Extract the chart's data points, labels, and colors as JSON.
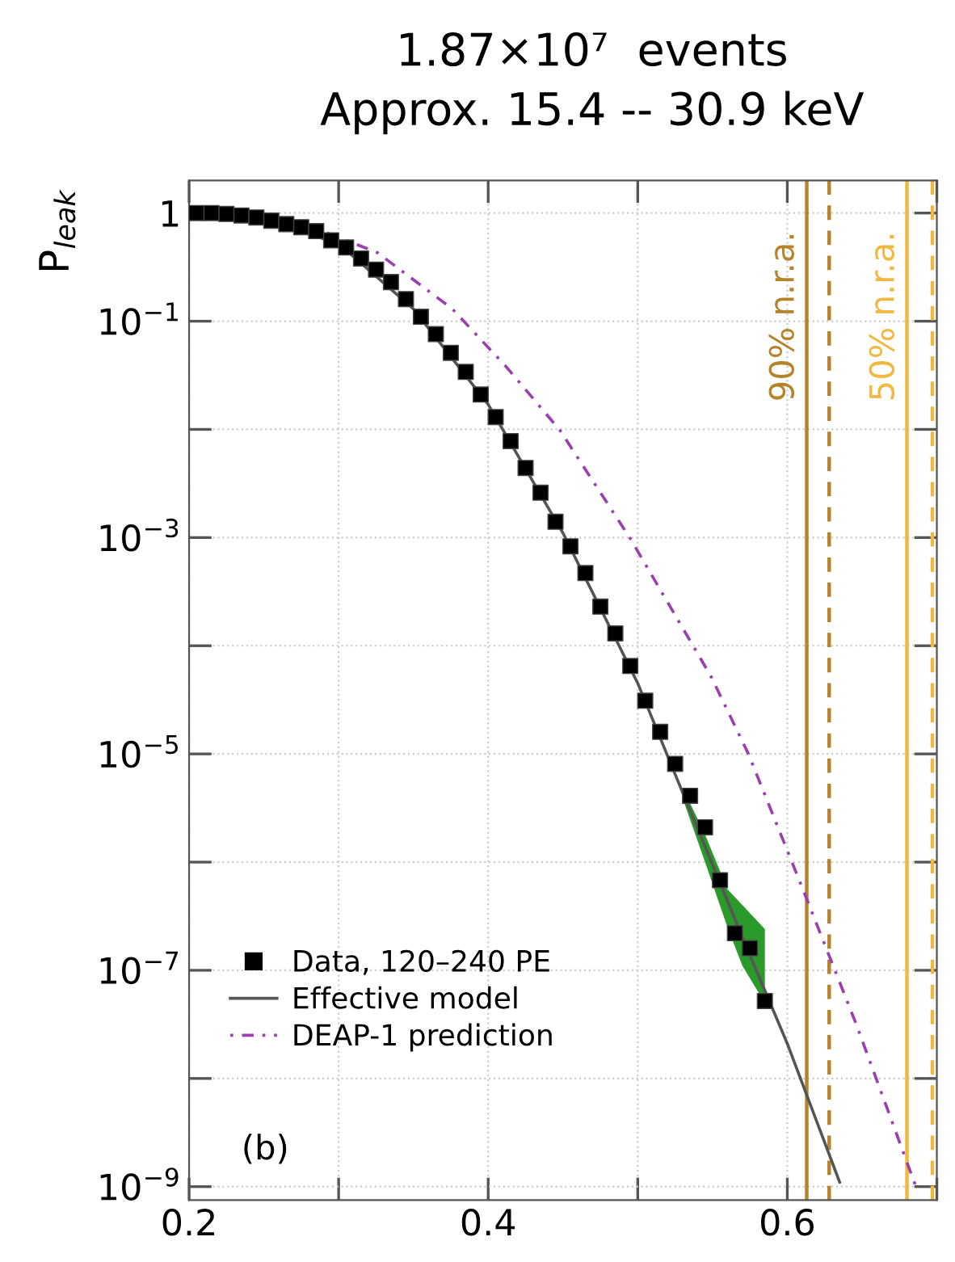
{
  "chart_data": {
    "type": "line",
    "title": "1.87×10⁷  events",
    "subtitle": "Approx. 15.4 -- 30.9 keV",
    "ylabel": "P$_{leak}$",
    "log": "y",
    "grid": true,
    "legend": "bottom left",
    "xlim": [
      0.2,
      0.7
    ],
    "xticks": [
      0.2,
      {
        "value": 0.3,
        "label": null
      },
      0.4,
      {
        "value": 0.5,
        "label": null
      },
      0.6,
      {
        "value": 0.7,
        "label": null
      }
    ],
    "ylim": [
      7.5e-10,
      2
    ],
    "yticks": [
      1,
      {
        "value": 0.1,
        "label": "10$^{−1}$"
      },
      {
        "value": 0.01,
        "label": null
      },
      {
        "value": 0.001,
        "label": "10$^{−3}$"
      },
      {
        "value": 0.0001,
        "label": null
      },
      {
        "value": 1e-05,
        "label": "10$^{−5}$"
      },
      {
        "value": 1e-06,
        "label": null
      },
      {
        "value": 1e-07,
        "label": "10$^{−7}$"
      },
      {
        "value": 1e-08,
        "label": null
      },
      {
        "value": 1e-09,
        "label": "10$^{−9}$"
      }
    ],
    "annotations": [
      "(b)"
    ],
    "series": [
      {
        "name": "Data, 120–240 PE",
        "type": "scatter",
        "marker": "square",
        "color": "#000000",
        "x": [
          0.205,
          0.215,
          0.225,
          0.235,
          0.245,
          0.255,
          0.265,
          0.275,
          0.285,
          0.295,
          0.305,
          0.315,
          0.325,
          0.335,
          0.345,
          0.355,
          0.365,
          0.375,
          0.385,
          0.395,
          0.405,
          0.415,
          0.425,
          0.435,
          0.445,
          0.455,
          0.465,
          0.475,
          0.485,
          0.495,
          0.505,
          0.515,
          0.525,
          0.535,
          0.545,
          0.555,
          0.565,
          0.575,
          0.585
        ],
        "values": [
          1,
          1,
          0.98,
          0.95,
          0.91,
          0.85,
          0.79,
          0.74,
          0.68,
          0.56,
          0.48,
          0.38,
          0.3,
          0.23,
          0.16,
          0.11,
          0.076,
          0.051,
          0.034,
          0.021,
          0.013,
          0.0078,
          0.0044,
          0.0026,
          0.0014,
          0.00083,
          0.00047,
          0.00023,
          0.00013,
          6.5e-05,
          3.1e-05,
          1.6e-05,
          8.1e-06,
          4.1e-06,
          2.1e-06,
          6.8e-07,
          2.2e-07,
          1.6e-07,
          5.2e-08
        ]
      },
      {
        "name": "Effective model",
        "line_style": "solid",
        "color": "#555555",
        "x": [
          0.2,
          0.25,
          0.3,
          0.35,
          0.4,
          0.45,
          0.5,
          0.53,
          0.545,
          0.56,
          0.57,
          0.585,
          0.6,
          0.635
        ],
        "values": [
          1,
          0.88,
          0.52,
          0.13,
          0.017,
          0.0011,
          4.5e-05,
          4.4e-06,
          1.4e-06,
          4.4e-07,
          2e-07,
          6.5e-08,
          2.1e-08,
          1.1e-09
        ],
        "lower": [
          null,
          null,
          null,
          null,
          null,
          null,
          null,
          3.9e-06,
          1e-06,
          2.5e-07,
          1.1e-07,
          5e-08,
          null,
          null
        ],
        "upper": [
          null,
          null,
          null,
          null,
          null,
          null,
          null,
          4.9e-06,
          1.8e-06,
          5.6e-07,
          4e-07,
          2.4e-07,
          null,
          null
        ]
      },
      {
        "name": "DEAP-1 prediction",
        "line_style": "dotted",
        "color": "#9b3fb0",
        "x": [
          0.2,
          0.25,
          0.286,
          0.326,
          0.376,
          0.412,
          0.448,
          0.495,
          0.549,
          0.574,
          0.61,
          0.646,
          0.686
        ],
        "values": [
          1,
          0.91,
          0.71,
          0.43,
          0.13,
          0.038,
          0.0098,
          0.00098,
          5.2e-05,
          1e-05,
          5.8e-07,
          3.2e-08,
          1e-09
        ]
      }
    ],
    "ref_lines": [
      {
        "axis": "x",
        "value": 0.613,
        "label": "90% n.r.a.",
        "color": "#b5832a",
        "line_style": "solid"
      },
      {
        "axis": "x",
        "value": 0.628,
        "label": null,
        "color": "#b5832a",
        "line_style": "dashed"
      },
      {
        "axis": "x",
        "value": 0.68,
        "label": "50% n.r.a.",
        "color": "#f0b840",
        "line_style": "solid"
      },
      {
        "axis": "x",
        "value": 0.697,
        "label": null,
        "color": "#f0b840",
        "line_style": "dashed"
      }
    ]
  }
}
